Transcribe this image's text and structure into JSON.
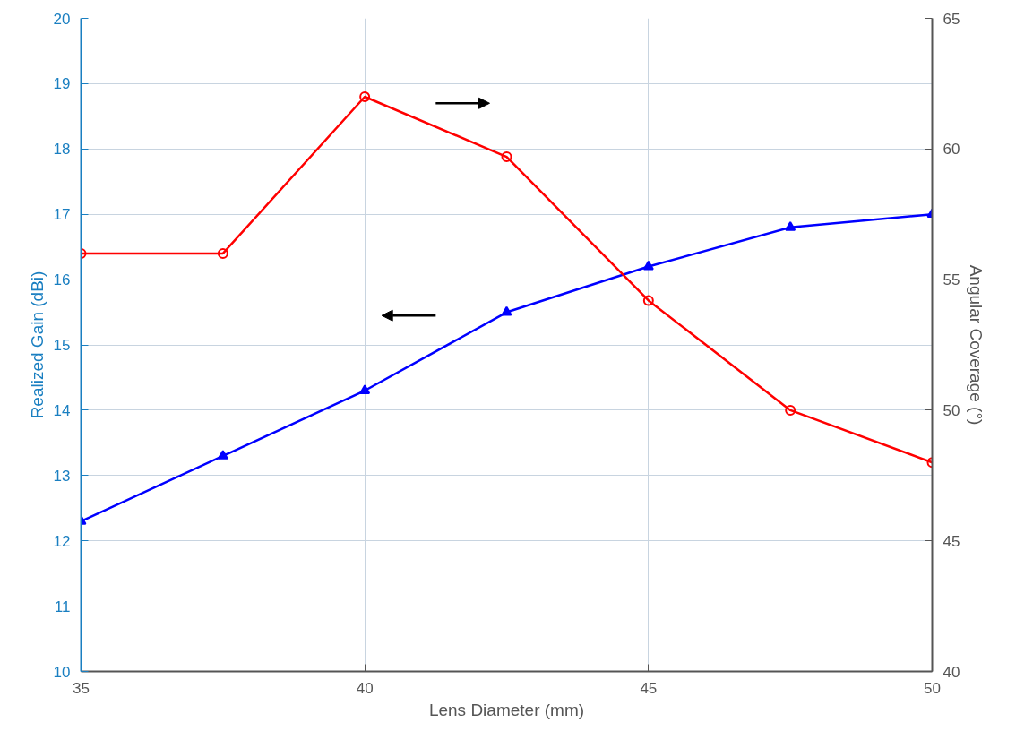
{
  "chart_data": {
    "type": "line",
    "xlabel": "Lens Diameter (mm)",
    "ylabel": "Realized Gain (dBi)",
    "y2label": "Angular Coverage (°)",
    "x": [
      35,
      37.5,
      40,
      42.5,
      45,
      47.5,
      50
    ],
    "series": [
      {
        "color": "#0000ff",
        "marker": "triangle",
        "values": [
          12.3,
          13.3,
          14.3,
          15.5,
          16.2,
          16.8,
          17.0
        ]
      },
      {
        "color": "#ff0000",
        "marker": "circle",
        "axis": "y2",
        "values": [
          56,
          56,
          62,
          59.7,
          54.2,
          50,
          48
        ]
      }
    ],
    "xlim": [
      35,
      50
    ],
    "xticks": [
      35,
      40,
      45,
      50
    ],
    "ylim": [
      10,
      20
    ],
    "yticks": [
      10,
      11,
      12,
      13,
      14,
      15,
      16,
      17,
      18,
      19,
      20
    ],
    "y2lim": [
      40,
      65
    ],
    "y2ticks": [
      40,
      45,
      50,
      55,
      60,
      65
    ],
    "grid": true,
    "line_style": "solid"
  }
}
